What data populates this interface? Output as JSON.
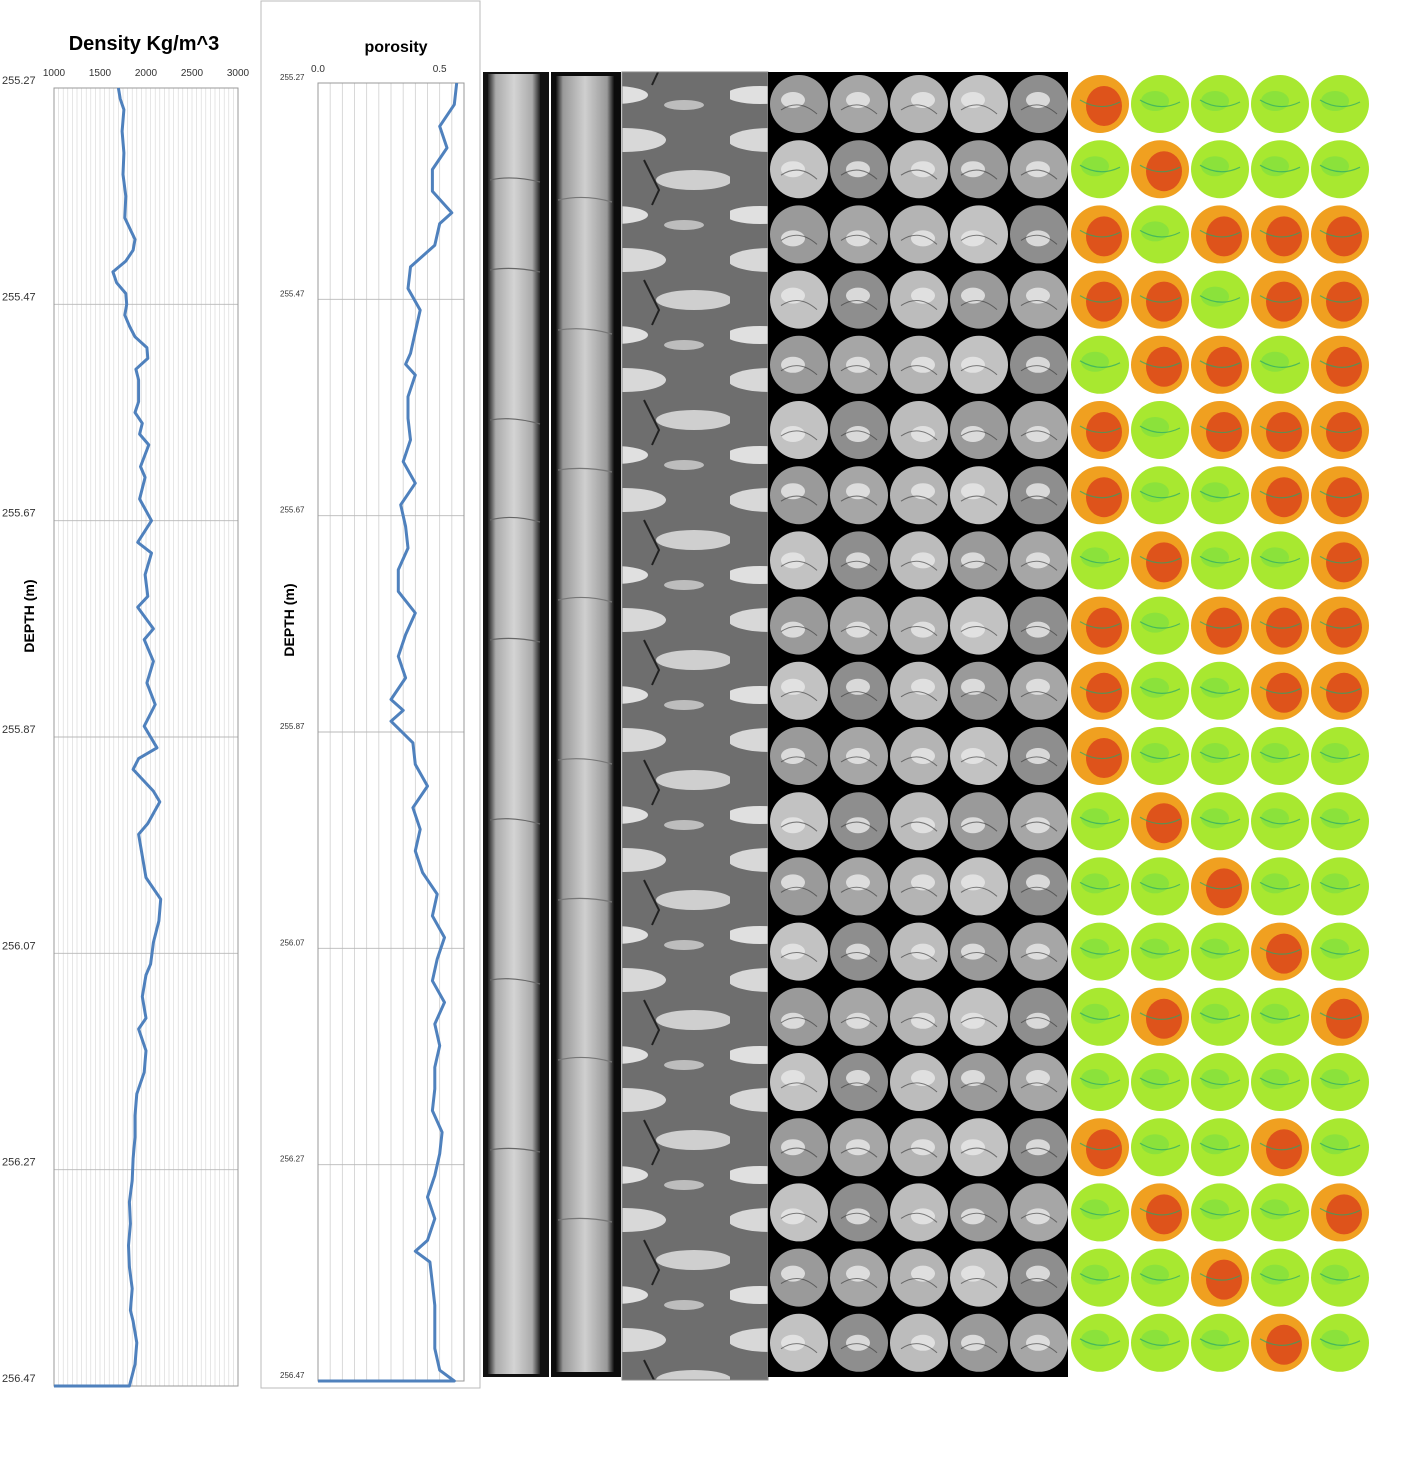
{
  "chart_data": [
    {
      "type": "line",
      "title": "Density Kg/m^3",
      "ylabel": "DEPTH (m)",
      "xlabel": "",
      "xlim": [
        1000,
        3000
      ],
      "ylim": [
        256.47,
        255.27
      ],
      "x_ticks": [
        "1000",
        "1500",
        "2000",
        "2500",
        "3000"
      ],
      "y_ticks": [
        "255.27",
        "255.47",
        "255.67",
        "255.87",
        "256.07",
        "256.27",
        "256.47"
      ],
      "grid": "on",
      "series": [
        {
          "color": "#4f81bd",
          "points": [
            [
              1700,
              255.27
            ],
            [
              1720,
              255.28
            ],
            [
              1760,
              255.29
            ],
            [
              1740,
              255.31
            ],
            [
              1760,
              255.33
            ],
            [
              1750,
              255.35
            ],
            [
              1780,
              255.37
            ],
            [
              1770,
              255.39
            ],
            [
              1880,
              255.41
            ],
            [
              1860,
              255.42
            ],
            [
              1780,
              255.43
            ],
            [
              1640,
              255.44
            ],
            [
              1680,
              255.45
            ],
            [
              1780,
              255.46
            ],
            [
              1790,
              255.47
            ],
            [
              1770,
              255.48
            ],
            [
              1820,
              255.49
            ],
            [
              1880,
              255.5
            ],
            [
              2010,
              255.51
            ],
            [
              2020,
              255.52
            ],
            [
              1890,
              255.53
            ],
            [
              1920,
              255.54
            ],
            [
              1920,
              255.56
            ],
            [
              1880,
              255.57
            ],
            [
              1960,
              255.58
            ],
            [
              1930,
              255.59
            ],
            [
              2030,
              255.6
            ],
            [
              1940,
              255.62
            ],
            [
              1990,
              255.63
            ],
            [
              1930,
              255.65
            ],
            [
              2060,
              255.67
            ],
            [
              1910,
              255.69
            ],
            [
              2060,
              255.7
            ],
            [
              1990,
              255.72
            ],
            [
              2020,
              255.74
            ],
            [
              1910,
              255.75
            ],
            [
              2080,
              255.77
            ],
            [
              1980,
              255.78
            ],
            [
              2080,
              255.8
            ],
            [
              2010,
              255.82
            ],
            [
              2100,
              255.84
            ],
            [
              1980,
              255.86
            ],
            [
              2120,
              255.88
            ],
            [
              1920,
              255.89
            ],
            [
              1860,
              255.9
            ],
            [
              2080,
              255.92
            ],
            [
              2150,
              255.93
            ],
            [
              2020,
              255.95
            ],
            [
              1920,
              255.96
            ],
            [
              1960,
              255.98
            ],
            [
              2000,
              256.0
            ],
            [
              2160,
              256.02
            ],
            [
              2140,
              256.04
            ],
            [
              2080,
              256.06
            ],
            [
              2050,
              256.08
            ],
            [
              2000,
              256.09
            ],
            [
              1960,
              256.11
            ],
            [
              2000,
              256.13
            ],
            [
              1920,
              256.14
            ],
            [
              2000,
              256.16
            ],
            [
              1980,
              256.18
            ],
            [
              1900,
              256.2
            ],
            [
              1880,
              256.22
            ],
            [
              1880,
              256.24
            ],
            [
              1860,
              256.26
            ],
            [
              1850,
              256.28
            ],
            [
              1820,
              256.3
            ],
            [
              1830,
              256.32
            ],
            [
              1810,
              256.34
            ],
            [
              1820,
              256.36
            ],
            [
              1850,
              256.38
            ],
            [
              1830,
              256.4
            ],
            [
              1860,
              256.41
            ],
            [
              1900,
              256.43
            ],
            [
              1880,
              256.45
            ],
            [
              1850,
              256.46
            ],
            [
              1820,
              256.47
            ],
            [
              1000,
              256.47
            ]
          ]
        }
      ]
    },
    {
      "type": "line",
      "title": "porosity",
      "ylabel": "DEPTH (m)",
      "xlabel": "",
      "xlim": [
        0.0,
        0.6
      ],
      "ylim": [
        256.47,
        255.27
      ],
      "x_ticks": [
        "0.0",
        "0.5"
      ],
      "y_ticks": [
        "255.27",
        "255.47",
        "255.67",
        "255.87",
        "256.07",
        "256.27",
        "256.47"
      ],
      "grid": "on",
      "series": [
        {
          "color": "#4f81bd",
          "points": [
            [
              0.57,
              255.27
            ],
            [
              0.56,
              255.29
            ],
            [
              0.5,
              255.31
            ],
            [
              0.53,
              255.33
            ],
            [
              0.47,
              255.35
            ],
            [
              0.47,
              255.37
            ],
            [
              0.55,
              255.39
            ],
            [
              0.5,
              255.4
            ],
            [
              0.48,
              255.42
            ],
            [
              0.38,
              255.44
            ],
            [
              0.37,
              255.46
            ],
            [
              0.42,
              255.48
            ],
            [
              0.4,
              255.5
            ],
            [
              0.38,
              255.52
            ],
            [
              0.36,
              255.53
            ],
            [
              0.4,
              255.54
            ],
            [
              0.37,
              255.56
            ],
            [
              0.37,
              255.58
            ],
            [
              0.38,
              255.6
            ],
            [
              0.35,
              255.62
            ],
            [
              0.4,
              255.64
            ],
            [
              0.34,
              255.66
            ],
            [
              0.36,
              255.68
            ],
            [
              0.37,
              255.7
            ],
            [
              0.33,
              255.72
            ],
            [
              0.33,
              255.74
            ],
            [
              0.4,
              255.76
            ],
            [
              0.36,
              255.78
            ],
            [
              0.33,
              255.8
            ],
            [
              0.36,
              255.82
            ],
            [
              0.3,
              255.84
            ],
            [
              0.35,
              255.85
            ],
            [
              0.3,
              255.86
            ],
            [
              0.39,
              255.88
            ],
            [
              0.4,
              255.9
            ],
            [
              0.45,
              255.92
            ],
            [
              0.39,
              255.94
            ],
            [
              0.42,
              255.96
            ],
            [
              0.4,
              255.98
            ],
            [
              0.43,
              256.0
            ],
            [
              0.49,
              256.02
            ],
            [
              0.47,
              256.04
            ],
            [
              0.52,
              256.06
            ],
            [
              0.49,
              256.08
            ],
            [
              0.47,
              256.1
            ],
            [
              0.52,
              256.12
            ],
            [
              0.48,
              256.14
            ],
            [
              0.5,
              256.16
            ],
            [
              0.48,
              256.18
            ],
            [
              0.48,
              256.2
            ],
            [
              0.47,
              256.22
            ],
            [
              0.51,
              256.24
            ],
            [
              0.5,
              256.26
            ],
            [
              0.48,
              256.28
            ],
            [
              0.45,
              256.3
            ],
            [
              0.48,
              256.32
            ],
            [
              0.45,
              256.34
            ],
            [
              0.4,
              256.35
            ],
            [
              0.46,
              256.36
            ],
            [
              0.47,
              256.38
            ],
            [
              0.48,
              256.4
            ],
            [
              0.48,
              256.42
            ],
            [
              0.48,
              256.44
            ],
            [
              0.5,
              256.46
            ],
            [
              0.56,
              256.47
            ],
            [
              0.0,
              256.47
            ]
          ]
        }
      ]
    }
  ]
}
